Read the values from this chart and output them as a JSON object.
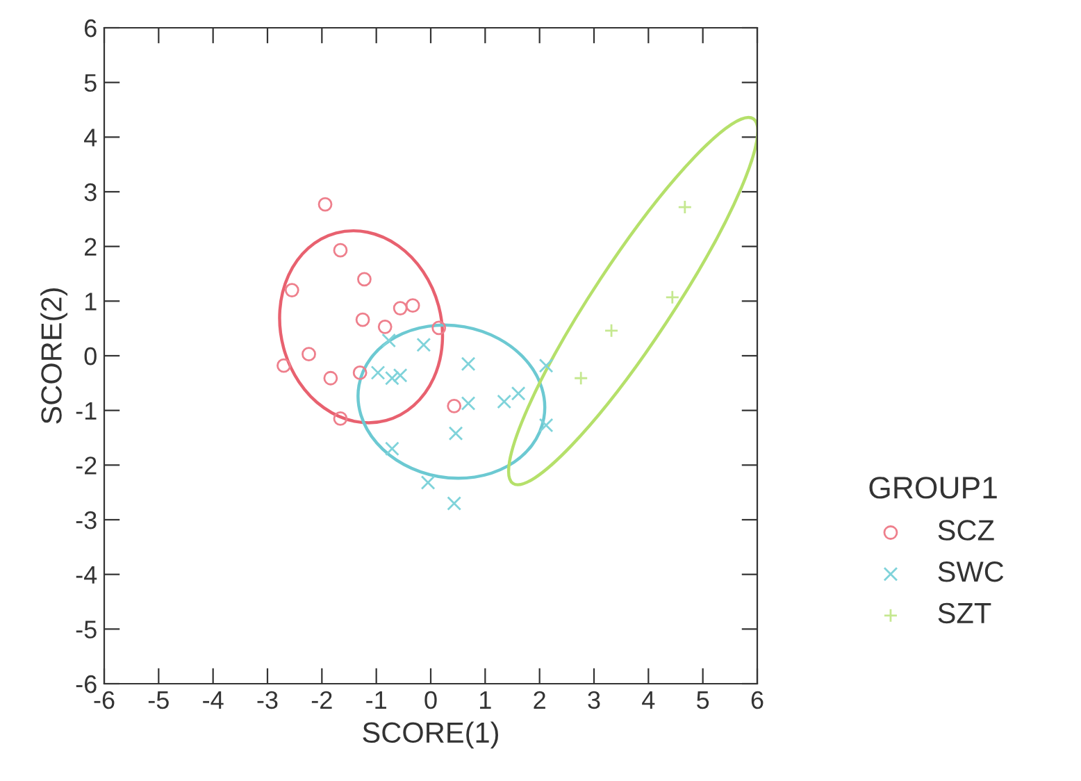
{
  "chart_data": {
    "type": "scatter",
    "xlabel": "SCORE(1)",
    "ylabel": "SCORE(2)",
    "legend_title": "GROUP1",
    "legend": "right",
    "grid": false,
    "xlim": [
      -6,
      6
    ],
    "ylim": [
      -6,
      6
    ],
    "xticks": [
      -6,
      -5,
      -4,
      -3,
      -2,
      -1,
      0,
      1,
      2,
      3,
      4,
      5,
      6
    ],
    "yticks": [
      -6,
      -5,
      -4,
      -3,
      -2,
      -1,
      0,
      1,
      2,
      3,
      4,
      5,
      6
    ],
    "series": [
      {
        "name": "SCZ",
        "color": "#ee7f8c",
        "marker": "circle",
        "x": [
          -1.94,
          -1.66,
          -1.22,
          -2.55,
          -0.56,
          -0.33,
          -1.25,
          -0.84,
          0.15,
          -2.24,
          -2.7,
          -1.84,
          -1.3,
          -1.66,
          0.43
        ],
        "values": [
          2.77,
          1.93,
          1.4,
          1.2,
          0.87,
          0.92,
          0.66,
          0.53,
          0.51,
          0.03,
          -0.18,
          -0.41,
          -0.31,
          -1.15,
          -0.92
        ]
      },
      {
        "name": "SWC",
        "color": "#7fd3da",
        "marker": "cross",
        "x": [
          -0.13,
          -0.77,
          -0.97,
          -0.71,
          -0.56,
          0.69,
          0.69,
          1.35,
          1.61,
          2.12,
          2.12,
          0.46,
          -0.71,
          -0.05,
          0.43
        ],
        "values": [
          0.2,
          0.28,
          -0.31,
          -0.41,
          -0.36,
          -0.15,
          -0.87,
          -0.84,
          -0.69,
          -0.18,
          -1.27,
          -1.42,
          -1.7,
          -2.32,
          -2.7
        ]
      },
      {
        "name": "SZT",
        "color": "#c5e890",
        "marker": "plus",
        "x": [
          4.67,
          4.44,
          3.32,
          2.76
        ],
        "values": [
          2.72,
          1.07,
          0.46,
          -0.41
        ]
      }
    ]
  }
}
